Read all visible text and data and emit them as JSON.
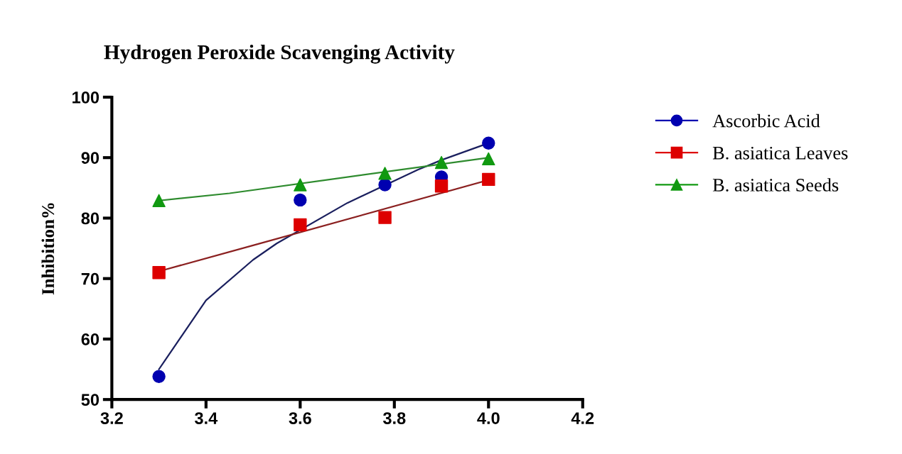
{
  "chart_data": {
    "type": "scatter",
    "title": "Hydrogen Peroxide Scavenging Activity",
    "ylabel": "Inhibition%",
    "xlim": [
      3.2,
      4.2
    ],
    "xticks": [
      {
        "value": 3.2,
        "label": "3.2"
      },
      {
        "value": 3.4,
        "label": "3.4"
      },
      {
        "value": 3.6,
        "label": "3.6"
      },
      {
        "value": 3.8,
        "label": "3.8"
      },
      {
        "value": 4.0,
        "label": "4.0"
      },
      {
        "value": 4.2,
        "label": "4.2"
      }
    ],
    "ylim": [
      50,
      100
    ],
    "yticks": [
      50,
      60,
      70,
      80,
      90,
      100
    ],
    "grid": false,
    "legend": "right",
    "series": [
      {
        "name": "Ascorbic Acid",
        "marker": "circle",
        "color": "#0000b0",
        "x": [
          3.3,
          3.6,
          3.78,
          3.9,
          4.0
        ],
        "values": [
          53.8,
          83.0,
          85.5,
          86.8,
          92.4
        ]
      },
      {
        "name": "B. asiatica Leaves",
        "marker": "square",
        "color": "#dd0000",
        "x": [
          3.3,
          3.6,
          3.78,
          3.9,
          4.0
        ],
        "values": [
          71.0,
          78.9,
          80.1,
          85.3,
          86.4
        ]
      },
      {
        "name": "B. asiatica Seeds",
        "marker": "triangle",
        "color": "#119911",
        "x": [
          3.3,
          3.6,
          3.78,
          3.9,
          4.0
        ],
        "values": [
          82.9,
          85.5,
          87.4,
          89.2,
          89.8
        ]
      },
      {
        "type": "line",
        "color": "#1a1f5e",
        "x": [
          3.3,
          3.4,
          3.5,
          3.55,
          3.7,
          3.85,
          3.9,
          4.0
        ],
        "values": [
          55.0,
          66.4,
          73.1,
          75.8,
          82.5,
          88.0,
          89.6,
          92.4
        ]
      },
      {
        "type": "line",
        "color": "#8b2020",
        "x": [
          3.3,
          3.5,
          4.0
        ],
        "values": [
          71.2,
          75.5,
          86.3
        ]
      },
      {
        "type": "line",
        "color": "#2e8b2e",
        "x": [
          3.3,
          3.45,
          4.0
        ],
        "values": [
          82.9,
          84.1,
          90.0
        ]
      }
    ]
  }
}
